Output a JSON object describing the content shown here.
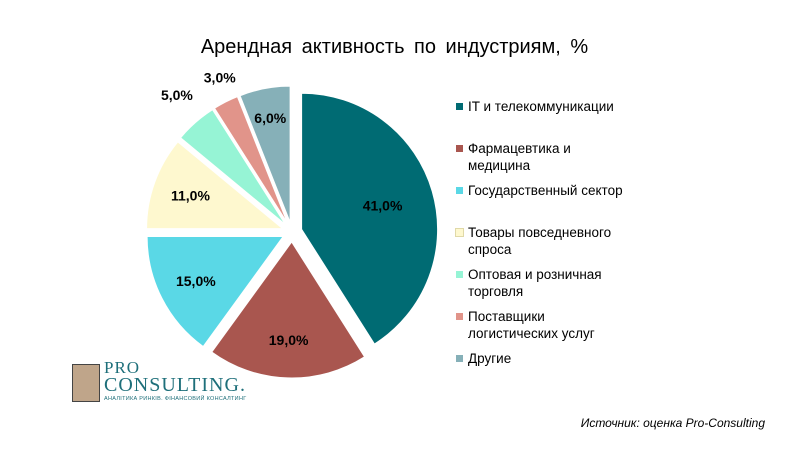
{
  "chart_data": {
    "type": "pie",
    "title": "Арендная  активность  по  индустриям,  %",
    "categories": [
      "IT и телекоммуникации",
      "Фармацевтика и медицина",
      "Государственный сектор",
      "Товары повседневного спроса",
      "Оптовая и розничная торговля",
      "Поставщики логистических  услуг",
      "Другие"
    ],
    "values": [
      41.0,
      19.0,
      15.0,
      11.0,
      5.0,
      3.0,
      6.0
    ],
    "data_labels": [
      "41,0%",
      "19,0%",
      "15,0%",
      "11,0%",
      "5,0%",
      "3,0%",
      "6,0%"
    ],
    "colors": [
      "#006b73",
      "#a9564f",
      "#5ad8e6",
      "#fef8cf",
      "#96f4d5",
      "#e1948a",
      "#86b0b8"
    ],
    "legend_position": "right"
  },
  "legend": {
    "items": [
      {
        "line1": "IT и телекоммуникации",
        "line2": ""
      },
      {
        "line1": "Фармацевтика и",
        "line2": "медицина"
      },
      {
        "line1": "Государственный сектор",
        "line2": ""
      },
      {
        "line1": "Товары повседневного",
        "line2": "спроса"
      },
      {
        "line1": "Оптовая и розничная",
        "line2": "торговля"
      },
      {
        "line1": "Поставщики",
        "line2": "логистических  услуг"
      },
      {
        "line1": "Другие",
        "line2": ""
      }
    ]
  },
  "logo": {
    "pro": "PRO",
    "consulting": "CONSULTING.",
    "tagline": "АНАЛІТИКА РИНКІВ. ФІНАНСОВИЙ КОНСАЛТИНГ"
  },
  "source": "Источник: оценка Pro-Consulting"
}
